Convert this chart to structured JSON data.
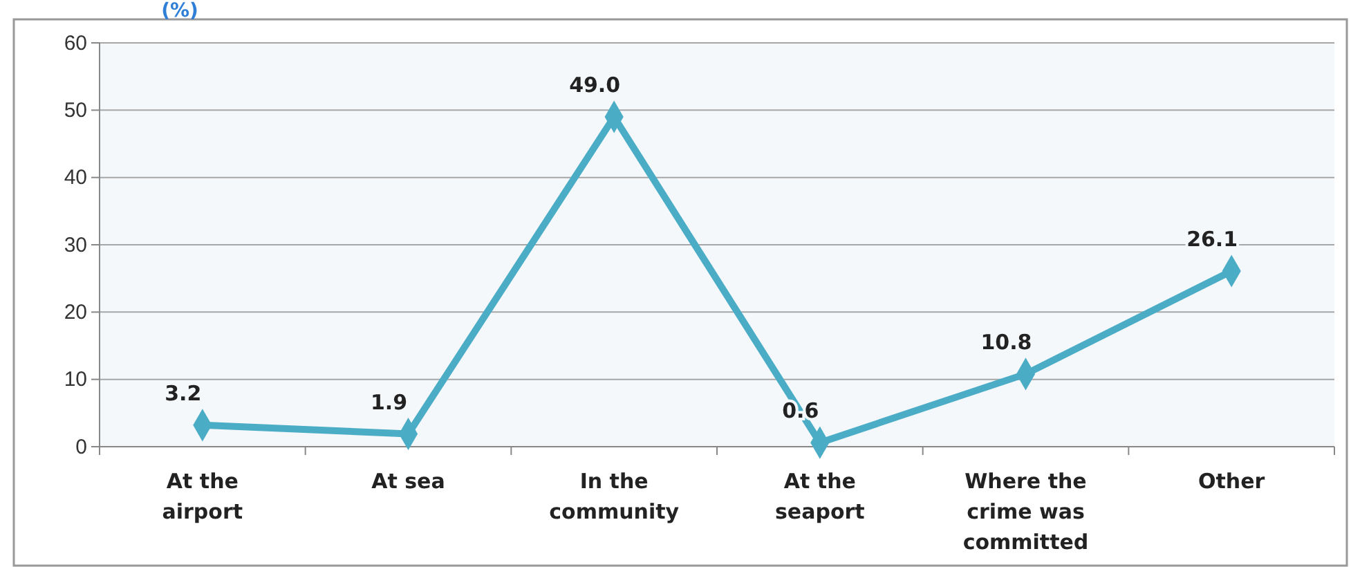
{
  "chart_data": {
    "type": "line",
    "title": "(%)",
    "categories": [
      "At the airport",
      "At sea",
      "In the community",
      "At the seaport",
      "Where the crime was committed",
      "Other"
    ],
    "series": [
      {
        "color": "#4bacc6",
        "values": [
          3.2,
          1.9,
          49.0,
          0.6,
          10.8,
          26.1
        ]
      }
    ],
    "value_labels": [
      "3.2",
      "1.9",
      "49.0",
      "0.6",
      "10.8",
      "26.1"
    ],
    "ylim": [
      0,
      60
    ],
    "yticks": [
      0,
      10,
      20,
      30,
      40,
      50,
      60
    ],
    "grid": "y",
    "marker": "diamond",
    "line_style": "solid"
  }
}
